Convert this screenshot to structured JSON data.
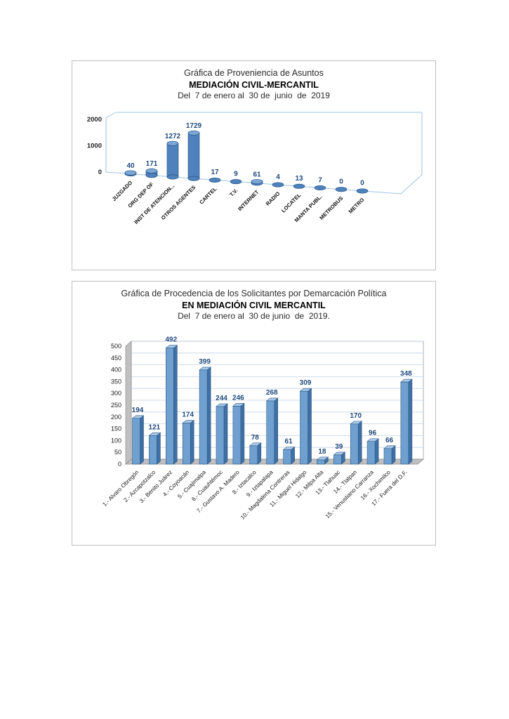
{
  "chart_data": [
    {
      "type": "bar",
      "variant": "3d-cylinder",
      "title": "Gráfica de Proveniencia de Asuntos",
      "subtitle": "MEDIACIÓN CIVIL-MERCANTIL",
      "period": "Del  7 de enero al  30 de  junio  de  2019",
      "categories": [
        "JUZGADO",
        "ORG DEP OF",
        "INST DE ATENCION...",
        "OTROS AGENTES",
        "CARTEL",
        "T.V.",
        "INTERNET",
        "RADIO",
        "LOCATEL",
        "MANTA PUBL.",
        "METROBUS",
        "METRO"
      ],
      "values": [
        40,
        171,
        1272,
        1729,
        17,
        9,
        61,
        4,
        13,
        7,
        0,
        0
      ],
      "ylim": [
        0,
        2000
      ],
      "yticks": [
        0,
        1000,
        2000
      ],
      "legend": "none",
      "grid": false,
      "bar_color": "#4f81bd",
      "bar_top": "#7ca6d8",
      "bar_edge": "#1f4e79",
      "frame_color": "#9dc3e6",
      "label_color": "#1f497d"
    },
    {
      "type": "bar",
      "variant": "3d-column",
      "title": "Gráfica de Procedencia de los Solicitantes por Demarcación Política",
      "subtitle": "EN MEDIACIÓN CIVIL MERCANTIL",
      "period": "Del  7 de enero al  30 de junio  de  2019.",
      "categories": [
        "1.- Alvaro Obregón",
        "2.- Azcapotzalco",
        "3.- Benito Juárez",
        "4.- Coyoacán",
        "5.- Cuajimalpa",
        "6.- Cuauhtémoc",
        "7.- Gustavo A. Madero",
        "8.- Iztacalco",
        "9.- Iztapalapa",
        "10.- Magdalena  Contreras",
        "11.- Miguel Hidalgo",
        "12.- Milpa Alta",
        "13.- Tlahuac",
        "14.- Tlalpan",
        "15.- Venustiano Carranza",
        "16.- Xochimilco",
        "17.- Fuera del D.F."
      ],
      "values": [
        194,
        121,
        492,
        174,
        399,
        244,
        246,
        78,
        268,
        61,
        309,
        18,
        39,
        170,
        96,
        66,
        348
      ],
      "ylim": [
        0,
        500
      ],
      "ytick_step": 50,
      "legend": "none",
      "grid": true,
      "bar_color": "#6fa0d0",
      "bar_side": "#3f6fa5",
      "bar_top": "#a9c8e8",
      "bar_edge": "#2e5a84",
      "grid_color": "#c3d2e0",
      "wall_color": "#c0c0c0",
      "label_color": "#1f497d"
    }
  ]
}
